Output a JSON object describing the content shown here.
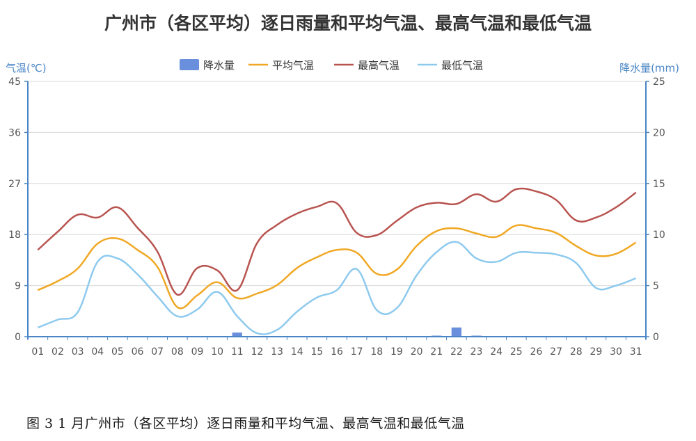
{
  "title": "广州市（各区平均）逐日雨量和平均气温、最高气温和最低气温",
  "caption": "图 3   1 月广州市（各区平均）逐日雨量和平均气温、最高气温和最低气温",
  "colors": {
    "precip": "#6a8fdc",
    "avg": "#f0a824",
    "max": "#b85450",
    "min": "#8ecaee",
    "axis": "#4a86c5",
    "grid": "#d9d9d9"
  },
  "chart_data": {
    "type": "line",
    "title": "广州市（各区平均）逐日雨量和平均气温、最高气温和最低气温",
    "xlabel": "",
    "ylabel": "气温(℃)",
    "y2label": "降水量(mm)",
    "ylim": [
      0,
      45
    ],
    "y2lim": [
      0,
      25
    ],
    "yticks": [
      "0",
      "9",
      "18",
      "27",
      "36",
      "45"
    ],
    "y2ticks": [
      "0",
      "5",
      "10",
      "15",
      "20",
      "25"
    ],
    "legend_position": "top-center",
    "grid": true,
    "categories": [
      "01",
      "02",
      "03",
      "04",
      "05",
      "06",
      "07",
      "08",
      "09",
      "10",
      "11",
      "12",
      "13",
      "14",
      "15",
      "16",
      "17",
      "18",
      "19",
      "20",
      "21",
      "22",
      "23",
      "24",
      "25",
      "26",
      "27",
      "28",
      "29",
      "30",
      "31"
    ],
    "series": [
      {
        "name": "降水量",
        "type": "bar",
        "axis": "right",
        "values": [
          0,
          0,
          0,
          0,
          0,
          0,
          0,
          0,
          0,
          0,
          0.4,
          0,
          0,
          0,
          0,
          0,
          0,
          0,
          0,
          0,
          0.1,
          0.9,
          0.1,
          0,
          0,
          0,
          0,
          0,
          0,
          0,
          0
        ]
      },
      {
        "name": "平均气温",
        "type": "line",
        "axis": "left",
        "values": [
          8.2,
          9.8,
          12.0,
          16.4,
          17.3,
          15.3,
          12.3,
          5.2,
          7.3,
          9.6,
          6.8,
          7.6,
          9.1,
          12.1,
          14.0,
          15.3,
          14.8,
          11.1,
          11.8,
          16.0,
          18.6,
          19.1,
          18.2,
          17.6,
          19.6,
          19.1,
          18.3,
          16.0,
          14.3,
          14.6,
          16.6
        ]
      },
      {
        "name": "最高气温",
        "type": "line",
        "axis": "left",
        "values": [
          15.3,
          18.5,
          21.5,
          21.0,
          22.8,
          19.2,
          15.0,
          7.4,
          12.1,
          11.7,
          8.2,
          16.5,
          19.7,
          21.7,
          22.9,
          23.5,
          18.3,
          17.9,
          20.4,
          22.8,
          23.6,
          23.4,
          25.1,
          23.8,
          26.0,
          25.6,
          24.1,
          20.5,
          21.0,
          22.8,
          25.4
        ]
      },
      {
        "name": "最低气温",
        "type": "line",
        "axis": "left",
        "values": [
          1.6,
          3.0,
          4.3,
          13.2,
          13.8,
          11.0,
          7.1,
          3.6,
          4.8,
          7.9,
          3.6,
          0.6,
          1.2,
          4.4,
          6.9,
          8.2,
          11.9,
          4.7,
          5.0,
          10.8,
          14.9,
          16.7,
          13.8,
          13.2,
          14.8,
          14.8,
          14.5,
          13.0,
          8.6,
          9.0,
          10.3
        ]
      }
    ]
  }
}
